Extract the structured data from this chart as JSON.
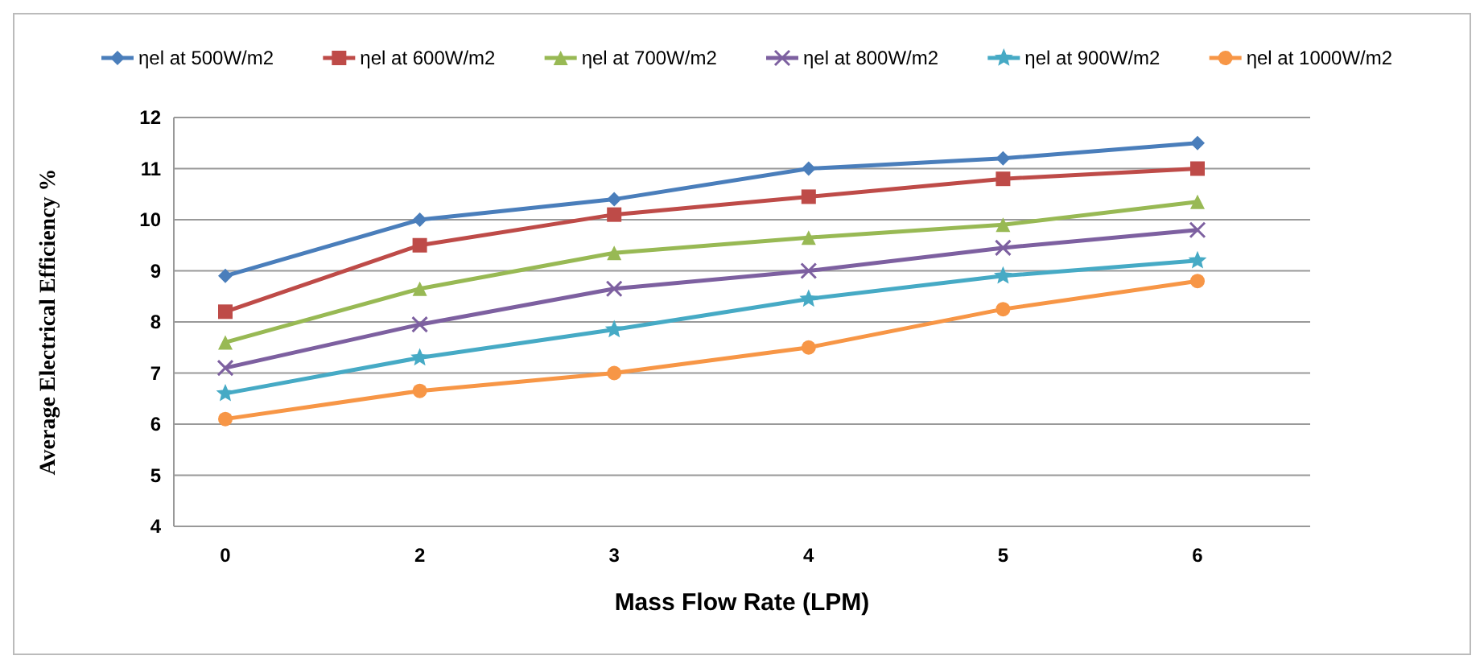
{
  "chart_data": {
    "type": "line",
    "xlabel": "Mass Flow Rate (LPM)",
    "ylabel": "Average Electrical Efficiency %",
    "categories": [
      "0",
      "2",
      "3",
      "4",
      "5",
      "6"
    ],
    "ylim": [
      4,
      12
    ],
    "yticks": [
      4,
      5,
      6,
      7,
      8,
      9,
      10,
      11,
      12
    ],
    "grid": "y",
    "legend": "top",
    "series": [
      {
        "name": "ηel at 500W/m2",
        "color": "#4a7ebb",
        "marker": "diamond",
        "values": [
          8.9,
          10,
          10.4,
          11,
          11.2,
          11.5
        ]
      },
      {
        "name": "ηel at 600W/m2",
        "color": "#be4b48",
        "marker": "square",
        "values": [
          8.2,
          9.5,
          10.1,
          10.45,
          10.8,
          11
        ]
      },
      {
        "name": "ηel at 700W/m2",
        "color": "#98b954",
        "marker": "triangle",
        "values": [
          7.6,
          8.65,
          9.35,
          9.65,
          9.9,
          10.35
        ]
      },
      {
        "name": "ηel at 800W/m2",
        "color": "#7d60a0",
        "marker": "cross",
        "values": [
          7.1,
          7.95,
          8.65,
          9.0,
          9.45,
          9.8
        ]
      },
      {
        "name": "ηel at 900W/m2",
        "color": "#46aac5",
        "marker": "star",
        "values": [
          6.6,
          7.3,
          7.85,
          8.45,
          8.9,
          9.2
        ]
      },
      {
        "name": "ηel at 1000W/m2",
        "color": "#f79646",
        "marker": "circle",
        "values": [
          6.1,
          6.65,
          7.0,
          7.5,
          8.25,
          8.8
        ]
      }
    ]
  }
}
